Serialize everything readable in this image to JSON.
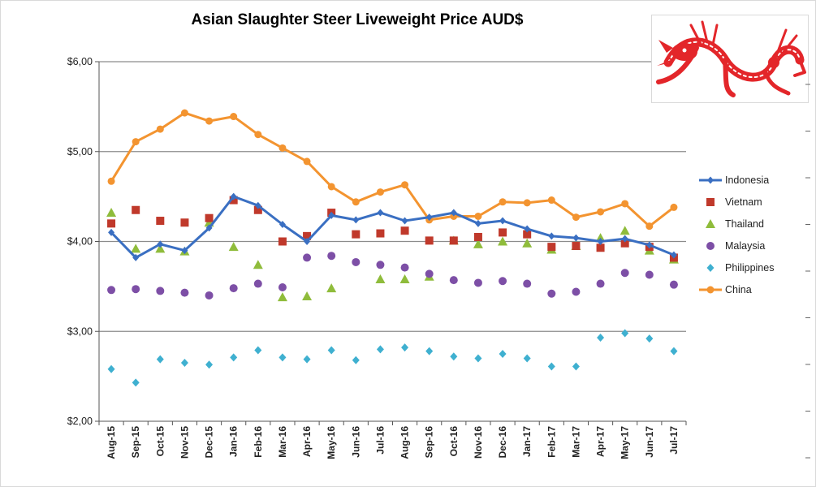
{
  "colors": {
    "Indonesia": "#3a6fc2",
    "Vietnam": "#c0392b",
    "Thailand": "#8fbc3b",
    "Malaysia": "#7d4fa6",
    "Philippines": "#3fb0d0",
    "China": "#f39430"
  },
  "chart_data": {
    "type": "line",
    "title": "Asian Slaughter Steer Liveweight Price AUD$",
    "xlabel": "",
    "ylabel": "",
    "ylim": [
      2.0,
      6.0
    ],
    "grid": "horizontal",
    "legend_position": "right",
    "y_ticks": [
      "$2,00",
      "$3,00",
      "$4,00",
      "$5,00",
      "$6,00"
    ],
    "categories": [
      "Aug-15",
      "Sep-15",
      "Oct-15",
      "Nov-15",
      "Dec-15",
      "Jan-16",
      "Feb-16",
      "Mar-16",
      "Apr-16",
      "May-16",
      "Jun-16",
      "Jul-16",
      "Aug-16",
      "Sep-16",
      "Oct-16",
      "Nov-16",
      "Dec-16",
      "Jan-17",
      "Feb-17",
      "Mar-17",
      "Apr-17",
      "May-17",
      "Jun-17",
      "Jul-17"
    ],
    "series": [
      {
        "name": "Indonesia",
        "style": "line-diamond",
        "values": [
          4.1,
          3.82,
          3.97,
          3.9,
          4.15,
          4.5,
          4.4,
          4.19,
          4.0,
          4.29,
          4.24,
          4.32,
          4.23,
          4.27,
          4.32,
          4.2,
          4.23,
          4.14,
          4.06,
          4.04,
          4.0,
          4.03,
          3.96,
          3.85
        ]
      },
      {
        "name": "Vietnam",
        "style": "square",
        "values": [
          4.2,
          4.35,
          4.23,
          4.21,
          4.26,
          4.46,
          4.35,
          4.0,
          4.06,
          4.32,
          4.08,
          4.09,
          4.12,
          4.01,
          4.01,
          4.05,
          4.1,
          4.08,
          3.94,
          3.95,
          3.93,
          3.98,
          3.94,
          3.82
        ]
      },
      {
        "name": "Thailand",
        "style": "triangle",
        "values": [
          4.32,
          3.92,
          3.92,
          3.89,
          4.21,
          3.94,
          3.74,
          3.38,
          3.39,
          3.48,
          null,
          3.58,
          3.58,
          3.61,
          4.01,
          3.97,
          4.0,
          3.98,
          3.91,
          3.95,
          4.04,
          4.12,
          3.9,
          3.8
        ]
      },
      {
        "name": "Malaysia",
        "style": "circle",
        "values": [
          3.46,
          3.47,
          3.45,
          3.43,
          3.4,
          3.48,
          3.53,
          3.49,
          3.82,
          3.84,
          3.77,
          3.74,
          3.71,
          3.64,
          3.57,
          3.54,
          3.56,
          3.53,
          3.42,
          3.44,
          3.53,
          3.65,
          3.63,
          3.52
        ]
      },
      {
        "name": "Philippines",
        "style": "diamond",
        "values": [
          2.58,
          2.43,
          2.69,
          2.65,
          2.63,
          2.71,
          2.79,
          2.71,
          2.69,
          2.79,
          2.68,
          2.8,
          2.82,
          2.78,
          2.72,
          2.7,
          2.75,
          2.7,
          2.61,
          2.61,
          2.93,
          2.98,
          2.92,
          2.78
        ]
      },
      {
        "name": "China",
        "style": "line-circle",
        "values": [
          4.67,
          5.11,
          5.25,
          5.43,
          5.34,
          5.39,
          5.19,
          5.04,
          4.89,
          4.61,
          4.44,
          4.55,
          4.63,
          4.24,
          4.28,
          4.28,
          4.44,
          4.43,
          4.46,
          4.27,
          4.33,
          4.42,
          4.17,
          4.38
        ]
      }
    ]
  },
  "logo": {
    "name": "red-dragon-emblem"
  }
}
